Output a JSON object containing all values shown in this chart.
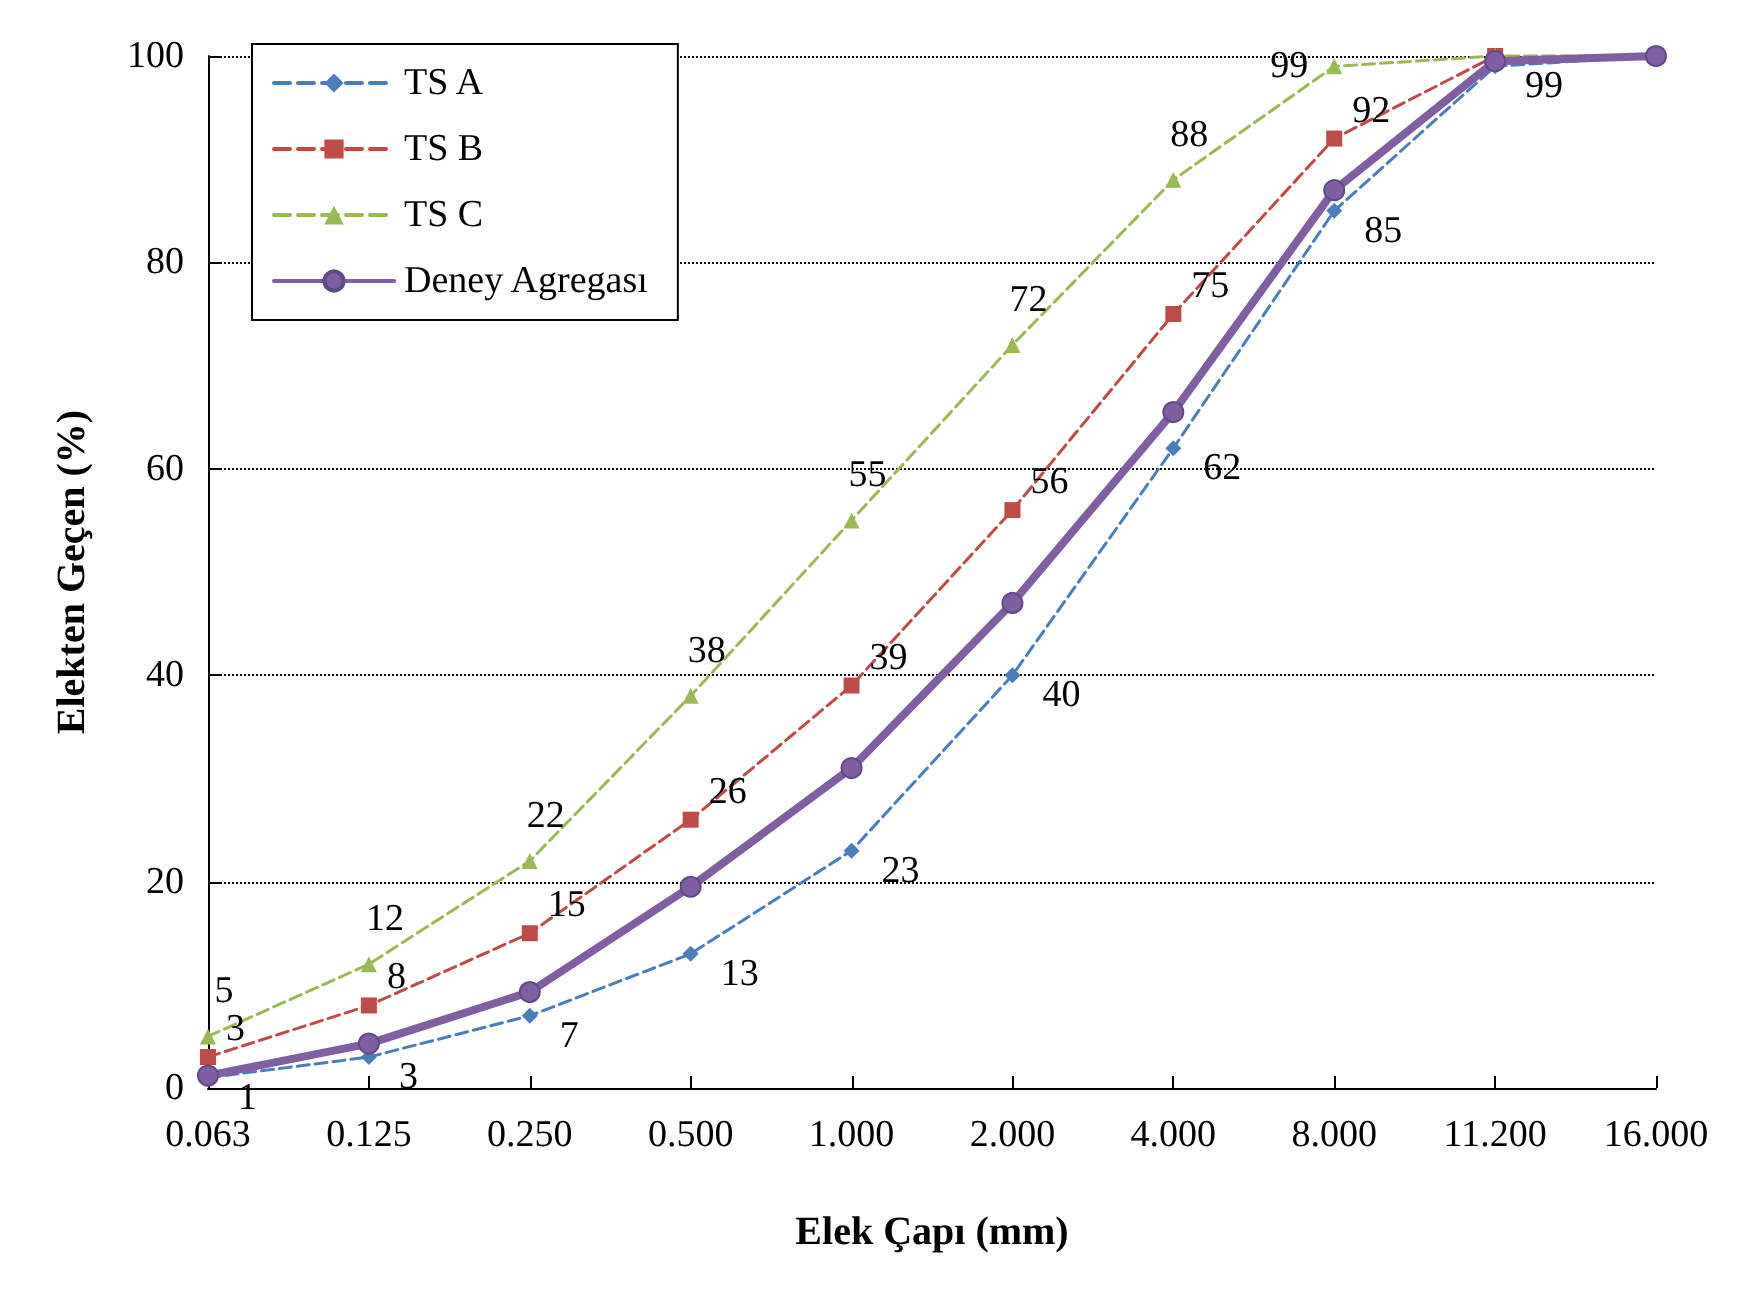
{
  "chart_data": {
    "type": "line",
    "xlabel": "Elek Çapı (mm)",
    "ylabel": "Elekten Geçen (%)",
    "categories": [
      "0.063",
      "0.125",
      "0.250",
      "0.500",
      "1.000",
      "2.000",
      "4.000",
      "8.000",
      "11.200",
      "16.000"
    ],
    "ylim": [
      0,
      100
    ],
    "yticks": [
      0,
      20,
      40,
      60,
      80,
      100
    ],
    "grid": "y",
    "legend": "top left",
    "series": [
      {
        "name": "TS A",
        "color": "#4a7ebb",
        "marker": "diamond",
        "line_style": "dashed",
        "values": [
          1,
          3,
          7,
          13,
          23,
          40,
          62,
          85,
          99,
          100
        ],
        "value_labels": [
          "1",
          "3",
          "7",
          "13",
          "23",
          "40",
          "62",
          "85",
          "99",
          null
        ]
      },
      {
        "name": "TS B",
        "color": "#be4b48",
        "marker": "square",
        "line_style": "dashed",
        "values": [
          3,
          8,
          15,
          26,
          39,
          56,
          75,
          92,
          100,
          100
        ],
        "value_labels": [
          "3",
          "8",
          "15",
          "26",
          "39",
          "56",
          "75",
          "92",
          null,
          null
        ]
      },
      {
        "name": "TS C",
        "color": "#98b954",
        "marker": "triangle",
        "line_style": "dashed",
        "values": [
          5,
          12,
          22,
          38,
          55,
          72,
          88,
          99,
          100,
          100
        ],
        "value_labels": [
          "5",
          "12",
          "22",
          "38",
          "55",
          "72",
          "88",
          "99",
          null,
          null
        ]
      },
      {
        "name": "Deney Agregası",
        "color": "#7f5fa1",
        "marker": "circle",
        "line_style": "solid",
        "values": [
          1.2,
          4.3,
          9.3,
          19.5,
          31,
          47,
          65.5,
          87,
          99.5,
          100
        ]
      }
    ]
  }
}
